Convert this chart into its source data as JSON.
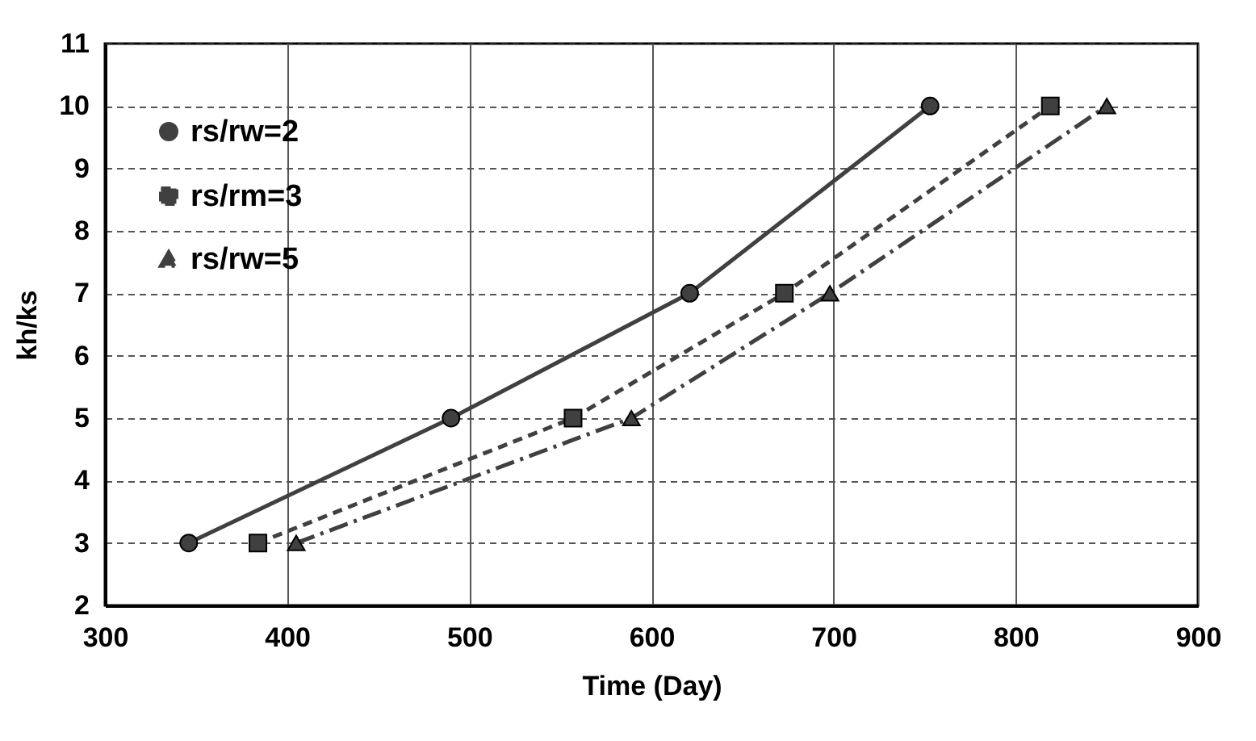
{
  "chart_data": {
    "type": "line",
    "xlabel": "Time (Day)",
    "ylabel": "kh/ks",
    "xlim": [
      300,
      900
    ],
    "xticks": [
      300,
      400,
      500,
      600,
      700,
      800,
      900
    ],
    "ylim": [
      2,
      11
    ],
    "yticks": [
      2,
      3,
      4,
      5,
      6,
      7,
      8,
      9,
      10,
      11
    ],
    "grid": true,
    "legend": "top left",
    "series": [
      {
        "name": "rs/rw=2",
        "color": "#404040",
        "marker": "circle",
        "line_style": "solid",
        "x": [
          346,
          490,
          621,
          753
        ],
        "values": [
          3,
          5,
          7,
          10
        ]
      },
      {
        "name": "rs/rm=3",
        "color": "#404040",
        "marker": "square",
        "line_style": "dashed",
        "x": [
          384,
          557,
          673,
          819
        ],
        "values": [
          3,
          5,
          7,
          10
        ]
      },
      {
        "name": "rs/rw=5",
        "color": "#404040",
        "marker": "triangle",
        "line_style": "dashdot",
        "x": [
          405,
          589,
          698,
          850
        ],
        "values": [
          3,
          5,
          7,
          10
        ]
      }
    ]
  }
}
